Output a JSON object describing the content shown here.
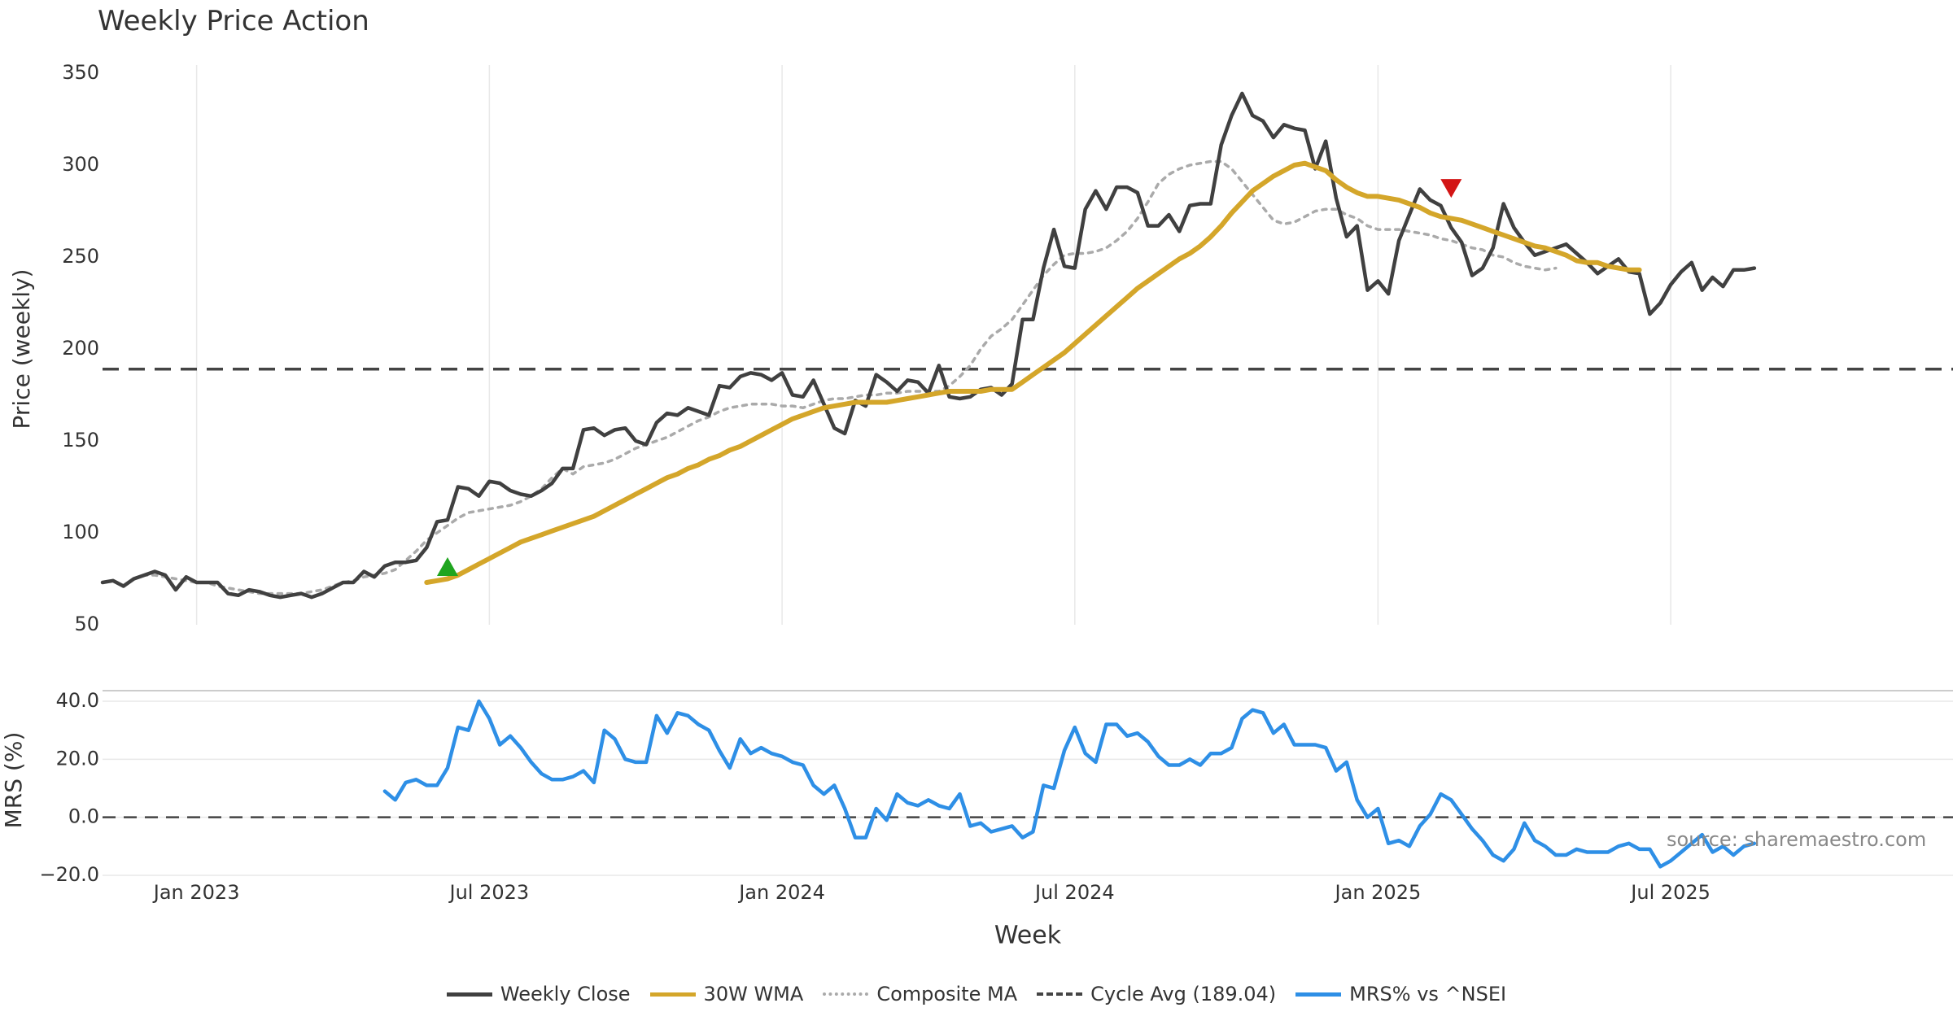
{
  "title": "Weekly Price Action",
  "source": "source: sharemaestro.com",
  "colors": {
    "close": "#404040",
    "wma": "#D4A62A",
    "composite": "#AAAAAA",
    "cycle": "#444444",
    "mrs": "#2E8FE6",
    "buy": "#1FA51F",
    "sell": "#D31515",
    "grid": "#E8E8E8"
  },
  "legend": [
    {
      "label": "Weekly Close",
      "style": "solid",
      "color": "#404040"
    },
    {
      "label": "30W WMA",
      "style": "solid",
      "color": "#D4A62A"
    },
    {
      "label": "Composite MA",
      "style": "dotted",
      "color": "#AAAAAA"
    },
    {
      "label": "Cycle Avg (189.04)",
      "style": "dashed",
      "color": "#444444"
    },
    {
      "label": "MRS% vs ^NSEI",
      "style": "solid",
      "color": "#2E8FE6"
    }
  ],
  "chart_data": [
    {
      "type": "line",
      "title": "Weekly Price Action",
      "ylabel": "Price (weekly)",
      "xlabel": "",
      "ylim": [
        50,
        350
      ],
      "yticks": [
        50,
        100,
        150,
        200,
        250,
        300,
        350
      ],
      "yticklabels": [
        "50",
        "100",
        "150",
        "200",
        "250",
        "300",
        "350"
      ],
      "xlim": [
        0,
        177
      ],
      "xticks": [
        {
          "x": 9,
          "label": "Jan 2023"
        },
        {
          "x": 37,
          "label": "Jul 2023"
        },
        {
          "x": 65,
          "label": "Jan 2024"
        },
        {
          "x": 93,
          "label": "Jul 2024"
        },
        {
          "x": 122,
          "label": "Jan 2025"
        },
        {
          "x": 150,
          "label": "Jul 2025"
        }
      ],
      "reference_line": {
        "label": "Cycle Avg (189.04)",
        "y": 189.04
      },
      "markers": [
        {
          "type": "buy",
          "x": 33,
          "y": 81
        },
        {
          "type": "sell",
          "x": 129,
          "y": 288
        }
      ],
      "series": [
        {
          "name": "Weekly Close",
          "x0": 0,
          "values": [
            73,
            74,
            71,
            75,
            77,
            79,
            77,
            69,
            76,
            73,
            73,
            73,
            67,
            66,
            69,
            68,
            66,
            65,
            66,
            67,
            65,
            67,
            70,
            73,
            73,
            79,
            76,
            82,
            84,
            84,
            85,
            92,
            106,
            107,
            125,
            124,
            120,
            128,
            127,
            123,
            121,
            120,
            123,
            127,
            135,
            135,
            156,
            157,
            153,
            156,
            157,
            150,
            148,
            160,
            165,
            164,
            168,
            166,
            164,
            180,
            179,
            185,
            187,
            186,
            183,
            187,
            175,
            174,
            183,
            170,
            157,
            154,
            172,
            169,
            186,
            182,
            177,
            183,
            182,
            176,
            191,
            174,
            173,
            174,
            178,
            179,
            175,
            181,
            216,
            216,
            244,
            265,
            245,
            244,
            276,
            286,
            276,
            288,
            288,
            285,
            267,
            267,
            273,
            264,
            278,
            279,
            279,
            311,
            327,
            339,
            327,
            324,
            315,
            322,
            320,
            319,
            298,
            313,
            282,
            261,
            267,
            232,
            237,
            230,
            259,
            273,
            287,
            281,
            278,
            266,
            258,
            240,
            244,
            255,
            279,
            266,
            258,
            251,
            253,
            255,
            257,
            252,
            247,
            241,
            245,
            249,
            242,
            241,
            219,
            225,
            235,
            242,
            247,
            232,
            239,
            234,
            243,
            243,
            244
          ],
          "color": "#404040"
        },
        {
          "name": "30W WMA",
          "x0": 31,
          "values": [
            73,
            74,
            75,
            77,
            80,
            83,
            86,
            89,
            92,
            95,
            97,
            99,
            101,
            103,
            105,
            107,
            109,
            112,
            115,
            118,
            121,
            124,
            127,
            130,
            132,
            135,
            137,
            140,
            142,
            145,
            147,
            150,
            153,
            156,
            159,
            162,
            164,
            166,
            168,
            169,
            170,
            171,
            171,
            171,
            171,
            172,
            173,
            174,
            175,
            176,
            177,
            177,
            177,
            177,
            178,
            178,
            178,
            182,
            186,
            190,
            194,
            198,
            203,
            208,
            213,
            218,
            223,
            228,
            233,
            237,
            241,
            245,
            249,
            252,
            256,
            261,
            267,
            274,
            280,
            286,
            290,
            294,
            297,
            300,
            301,
            299,
            297,
            292,
            288,
            285,
            283,
            283,
            282,
            281,
            279,
            277,
            274,
            272,
            271,
            270,
            268,
            266,
            264,
            262,
            260,
            258,
            256,
            255,
            253,
            251,
            248,
            247,
            247,
            245,
            244,
            243,
            243
          ],
          "color": "#D4A62A"
        },
        {
          "name": "Composite MA",
          "x0": 3,
          "values": [
            75,
            77,
            77,
            76,
            75,
            74,
            73,
            73,
            71,
            70,
            69,
            68,
            67,
            67,
            67,
            67,
            67,
            68,
            69,
            71,
            73,
            74,
            76,
            77,
            78,
            80,
            85,
            90,
            96,
            100,
            104,
            108,
            111,
            112,
            113,
            114,
            115,
            117,
            120,
            124,
            130,
            135,
            132,
            136,
            137,
            138,
            140,
            143,
            146,
            148,
            150,
            152,
            155,
            158,
            161,
            163,
            166,
            168,
            169,
            170,
            170,
            170,
            169,
            169,
            168,
            170,
            172,
            173,
            173,
            174,
            175,
            175,
            176,
            176,
            177,
            177,
            177,
            177,
            180,
            185,
            191,
            200,
            207,
            211,
            216,
            224,
            232,
            240,
            246,
            251,
            252,
            252,
            253,
            255,
            259,
            264,
            271,
            280,
            290,
            295,
            298,
            300,
            301,
            302,
            302,
            298,
            291,
            284,
            277,
            270,
            268,
            269,
            272,
            275,
            276,
            276,
            273,
            271,
            267,
            265,
            265,
            265,
            264,
            263,
            262,
            260,
            259,
            257,
            255,
            254,
            251,
            250,
            247,
            245,
            244,
            243,
            244
          ],
          "color": "#AAAAAA"
        }
      ]
    },
    {
      "type": "line",
      "title": "",
      "ylabel": "MRS (%)",
      "xlabel": "Week",
      "ylim": [
        -20,
        40
      ],
      "yticks": [
        -20,
        0,
        20,
        40
      ],
      "yticklabels": [
        "−20.0",
        "0.0",
        "20.0",
        "40.0"
      ],
      "xlim": [
        0,
        177
      ],
      "xticks": [
        {
          "x": 9,
          "label": "Jan 2023"
        },
        {
          "x": 37,
          "label": "Jul 2023"
        },
        {
          "x": 65,
          "label": "Jan 2024"
        },
        {
          "x": 93,
          "label": "Jul 2024"
        },
        {
          "x": 122,
          "label": "Jan 2025"
        },
        {
          "x": 150,
          "label": "Jul 2025"
        }
      ],
      "reference_line": {
        "label": "zero",
        "y": 0
      },
      "series": [
        {
          "name": "MRS% vs ^NSEI",
          "x0": 27,
          "values": [
            9,
            6,
            12,
            13,
            11,
            11,
            17,
            31,
            30,
            40,
            34,
            25,
            28,
            24,
            19,
            15,
            13,
            13,
            14,
            16,
            12,
            30,
            27,
            20,
            19,
            19,
            35,
            29,
            36,
            35,
            32,
            30,
            23,
            17,
            27,
            22,
            24,
            22,
            21,
            19,
            18,
            11,
            8,
            11,
            3,
            -7,
            -7,
            3,
            -1,
            8,
            5,
            4,
            6,
            4,
            3,
            8,
            -3,
            -2,
            -5,
            -4,
            -3,
            -7,
            -5,
            11,
            10,
            23,
            31,
            22,
            19,
            32,
            32,
            28,
            29,
            26,
            21,
            18,
            18,
            20,
            18,
            22,
            22,
            24,
            34,
            37,
            36,
            29,
            32,
            25,
            25,
            25,
            24,
            16,
            19,
            6,
            0,
            3,
            -9,
            -8,
            -10,
            -3,
            1,
            8,
            6,
            1,
            -4,
            -8,
            -13,
            -15,
            -11,
            -2,
            -8,
            -10,
            -13,
            -13,
            -11,
            -12,
            -12,
            -12,
            -10,
            -9,
            -11,
            -11,
            -17,
            -15,
            -12,
            -9,
            -6,
            -12,
            -10,
            -13,
            -10,
            -9
          ],
          "color": "#2E8FE6"
        }
      ]
    }
  ]
}
